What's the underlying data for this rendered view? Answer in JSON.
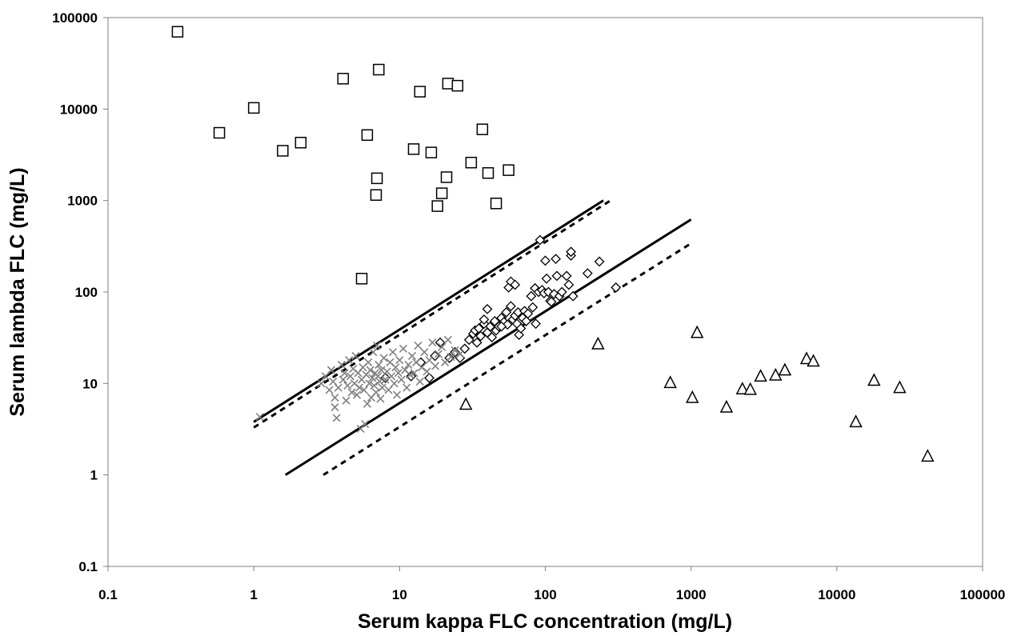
{
  "chart_data": {
    "type": "scatter",
    "title": "",
    "xlabel": "Serum kappa FLC concentration (mg/L)",
    "ylabel": "Serum lambda FLC (mg/L)",
    "xscale": "log",
    "yscale": "log",
    "xlim": [
      0.1,
      100000
    ],
    "ylim": [
      0.1,
      100000
    ],
    "grid": false,
    "legend": "none",
    "x_ticks": [
      "0.1",
      "1",
      "10",
      "100",
      "1000",
      "10000",
      "100000"
    ],
    "y_ticks": [
      "0.1",
      "1",
      "10",
      "100",
      "1000",
      "10000",
      "100000"
    ],
    "series": [
      {
        "marker": "square",
        "color": "#000000",
        "points": [
          [
            0.3,
            70000
          ],
          [
            0.58,
            5500
          ],
          [
            1.0,
            10300
          ],
          [
            1.58,
            3500
          ],
          [
            2.1,
            4300
          ],
          [
            4.1,
            21500
          ],
          [
            5.5,
            140
          ],
          [
            6.0,
            5200
          ],
          [
            6.9,
            1150
          ],
          [
            7.0,
            1750
          ],
          [
            7.2,
            27000
          ],
          [
            12.5,
            3650
          ],
          [
            13.8,
            15500
          ],
          [
            16.5,
            3350
          ],
          [
            18.2,
            870
          ],
          [
            19.5,
            1200
          ],
          [
            21.0,
            1800
          ],
          [
            21.5,
            19000
          ],
          [
            25.0,
            18000
          ],
          [
            31.0,
            2600
          ],
          [
            37.0,
            6000
          ],
          [
            40.5,
            2000
          ],
          [
            46.0,
            930
          ],
          [
            56.0,
            2150
          ]
        ]
      },
      {
        "marker": "triangle",
        "color": "#000000",
        "points": [
          [
            28.5,
            5.9
          ],
          [
            230,
            27
          ],
          [
            720,
            10.2
          ],
          [
            1020,
            7.0
          ],
          [
            1100,
            36
          ],
          [
            1750,
            5.5
          ],
          [
            2250,
            8.7
          ],
          [
            2550,
            8.6
          ],
          [
            3000,
            12.0
          ],
          [
            3800,
            12.3
          ],
          [
            4400,
            14.0
          ],
          [
            6200,
            18.6
          ],
          [
            6900,
            17.5
          ],
          [
            13500,
            3.8
          ],
          [
            18000,
            10.8
          ],
          [
            27000,
            9.0
          ],
          [
            42000,
            1.6
          ]
        ]
      },
      {
        "marker": "diamond",
        "color": "#000000",
        "points": [
          [
            8.0,
            11.5
          ],
          [
            12.0,
            12
          ],
          [
            14,
            17
          ],
          [
            16,
            11.5
          ],
          [
            17.5,
            20
          ],
          [
            19,
            28
          ],
          [
            22,
            19
          ],
          [
            24,
            22
          ],
          [
            26,
            19
          ],
          [
            28,
            24
          ],
          [
            30,
            30
          ],
          [
            32,
            35
          ],
          [
            33,
            38
          ],
          [
            34,
            28
          ],
          [
            35,
            40
          ],
          [
            36,
            33
          ],
          [
            38,
            45
          ],
          [
            40,
            36
          ],
          [
            42,
            42
          ],
          [
            43,
            32
          ],
          [
            45,
            46
          ],
          [
            46,
            38
          ],
          [
            48,
            42
          ],
          [
            50,
            52
          ],
          [
            52,
            47
          ],
          [
            54,
            60
          ],
          [
            55,
            44
          ],
          [
            56,
            112
          ],
          [
            58,
            70
          ],
          [
            60,
            50
          ],
          [
            62,
            55
          ],
          [
            64,
            45
          ],
          [
            65,
            60
          ],
          [
            66,
            34
          ],
          [
            68,
            40
          ],
          [
            70,
            52
          ],
          [
            72,
            62
          ],
          [
            74,
            48
          ],
          [
            76,
            58
          ],
          [
            80,
            90
          ],
          [
            82,
            68
          ],
          [
            85,
            110
          ],
          [
            86,
            45
          ],
          [
            90,
            100
          ],
          [
            95,
            105
          ],
          [
            98,
            97
          ],
          [
            100,
            220
          ],
          [
            102,
            140
          ],
          [
            105,
            100
          ],
          [
            108,
            80
          ],
          [
            110,
            78
          ],
          [
            115,
            95
          ],
          [
            118,
            230
          ],
          [
            120,
            150
          ],
          [
            125,
            90
          ],
          [
            130,
            100
          ],
          [
            140,
            150
          ],
          [
            145,
            120
          ],
          [
            150,
            250
          ],
          [
            150,
            275
          ],
          [
            155,
            90
          ],
          [
            195,
            160
          ],
          [
            235,
            215
          ],
          [
            305,
            112
          ],
          [
            92,
            370
          ],
          [
            58,
            130
          ],
          [
            62,
            120
          ],
          [
            40,
            65
          ],
          [
            38,
            50
          ],
          [
            45,
            48
          ],
          [
            50,
            42
          ]
        ]
      },
      {
        "marker": "cross",
        "color": "#808080",
        "points": [
          [
            1.1,
            4.3
          ],
          [
            2.9,
            10
          ],
          [
            3.1,
            12
          ],
          [
            3.3,
            8.5
          ],
          [
            3.4,
            14
          ],
          [
            3.5,
            10.5
          ],
          [
            3.6,
            7
          ],
          [
            3.6,
            5.5
          ],
          [
            3.7,
            4.2
          ],
          [
            3.8,
            9
          ],
          [
            4.0,
            16
          ],
          [
            4.1,
            11
          ],
          [
            4.2,
            13
          ],
          [
            4.3,
            6.5
          ],
          [
            4.4,
            9.5
          ],
          [
            4.5,
            18
          ],
          [
            4.6,
            12
          ],
          [
            4.7,
            8
          ],
          [
            4.8,
            14.5
          ],
          [
            4.9,
            10
          ],
          [
            5.0,
            20
          ],
          [
            5.1,
            7.5
          ],
          [
            5.2,
            13
          ],
          [
            5.3,
            9
          ],
          [
            5.4,
            3.2
          ],
          [
            5.5,
            11
          ],
          [
            5.6,
            15
          ],
          [
            5.7,
            8.5
          ],
          [
            5.8,
            3.6
          ],
          [
            5.9,
            12.5
          ],
          [
            6.0,
            6
          ],
          [
            6.1,
            17
          ],
          [
            6.2,
            10
          ],
          [
            6.3,
            14
          ],
          [
            6.4,
            7
          ],
          [
            6.5,
            11.5
          ],
          [
            6.6,
            22
          ],
          [
            6.7,
            9.5
          ],
          [
            6.8,
            13
          ],
          [
            6.9,
            8
          ],
          [
            7.0,
            26
          ],
          [
            7.1,
            12
          ],
          [
            7.2,
            16
          ],
          [
            7.3,
            10.5
          ],
          [
            7.4,
            6.8
          ],
          [
            7.5,
            14
          ],
          [
            7.6,
            9
          ],
          [
            7.8,
            19
          ],
          [
            8.0,
            11
          ],
          [
            8.2,
            13.5
          ],
          [
            8.4,
            8.5
          ],
          [
            8.6,
            17
          ],
          [
            8.8,
            12
          ],
          [
            9.0,
            22
          ],
          [
            9.2,
            10
          ],
          [
            9.4,
            15
          ],
          [
            9.6,
            7.5
          ],
          [
            9.8,
            13
          ],
          [
            10.0,
            18
          ],
          [
            10.3,
            11
          ],
          [
            10.6,
            24
          ],
          [
            10.9,
            14
          ],
          [
            11.2,
            9
          ],
          [
            11.5,
            16
          ],
          [
            11.8,
            12.5
          ],
          [
            12.2,
            20
          ],
          [
            12.6,
            13
          ],
          [
            13.0,
            17
          ],
          [
            13.4,
            26
          ],
          [
            13.8,
            10.5
          ],
          [
            14.2,
            15
          ],
          [
            14.8,
            22
          ],
          [
            15.4,
            13.5
          ],
          [
            16.0,
            18
          ],
          [
            16.8,
            28
          ],
          [
            17.6,
            15.5
          ],
          [
            18.5,
            21
          ],
          [
            19.5,
            25
          ],
          [
            20.5,
            17
          ],
          [
            21.5,
            30
          ],
          [
            22.5,
            19.5
          ],
          [
            24,
            23
          ],
          [
            26,
            21
          ]
        ]
      }
    ],
    "lines": [
      {
        "style": "solid",
        "from": [
          1.0,
          3.8
        ],
        "to": [
          250,
          1000
        ]
      },
      {
        "style": "dashed",
        "from": [
          1.0,
          3.3
        ],
        "to": [
          280,
          1000
        ]
      },
      {
        "style": "solid",
        "from": [
          1.65,
          1.0
        ],
        "to": [
          1000,
          620
        ]
      },
      {
        "style": "dashed",
        "from": [
          3.0,
          1.0
        ],
        "to": [
          1000,
          340
        ]
      }
    ]
  }
}
